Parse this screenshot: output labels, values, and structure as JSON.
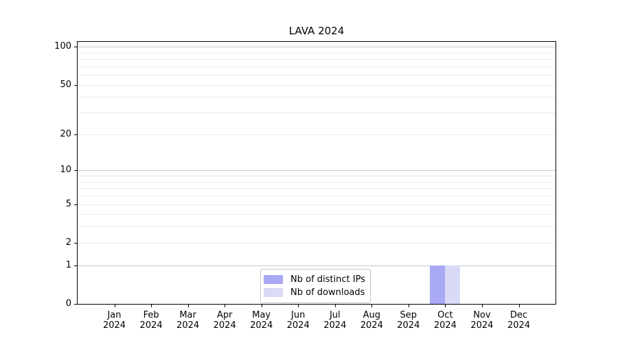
{
  "title": "LAVA 2024",
  "chart_data": {
    "type": "bar",
    "title": "LAVA 2024",
    "categories": [
      "Jan 2024",
      "Feb 2024",
      "Mar 2024",
      "Apr 2024",
      "May 2024",
      "Jun 2024",
      "Jul 2024",
      "Aug 2024",
      "Sep 2024",
      "Oct 2024",
      "Nov 2024",
      "Dec 2024"
    ],
    "series": [
      {
        "name": "Nb of distinct IPs",
        "color": "#a9a9f5",
        "values": [
          0,
          0,
          0,
          0,
          0,
          0,
          0,
          0,
          0,
          1,
          0,
          0
        ]
      },
      {
        "name": "Nb of downloads",
        "color": "#d9d9f8",
        "values": [
          0,
          0,
          0,
          0,
          0,
          0,
          0,
          0,
          0,
          1,
          0,
          0
        ]
      }
    ],
    "yscale": "log1p",
    "ylim": [
      0,
      112
    ],
    "y_tick_labels": [
      0,
      1,
      2,
      5,
      10,
      20,
      50,
      100
    ],
    "y_major_gridlines": [
      1,
      10,
      100
    ],
    "y_minor_gridlines": [
      2,
      3,
      4,
      5,
      6,
      7,
      8,
      9,
      20,
      30,
      40,
      50,
      60,
      70,
      80,
      90
    ],
    "grid": "horizontal",
    "legend_position": "lower center",
    "xlabel": "",
    "ylabel": ""
  },
  "colors": {
    "background": "#ffffff",
    "axis": "#000000",
    "grid_major": "#c8c8c8",
    "grid_minor": "#e9e9e9",
    "legend_border": "#c4c4c4",
    "text": "#000000"
  }
}
